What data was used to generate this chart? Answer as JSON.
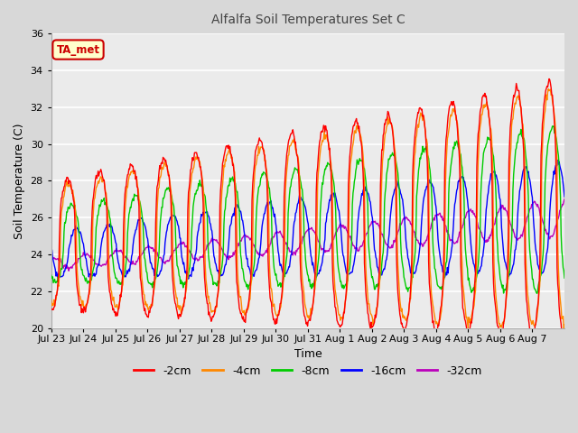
{
  "title": "Alfalfa Soil Temperatures Set C",
  "xlabel": "Time",
  "ylabel": "Soil Temperature (C)",
  "ylim": [
    20,
    36
  ],
  "yticks": [
    20,
    22,
    24,
    26,
    28,
    30,
    32,
    34,
    36
  ],
  "bg_color": "#d8d8d8",
  "plot_bg_color": "#ebebeb",
  "grid_color": "#cccccc",
  "annotation_text": "TA_met",
  "annotation_bg": "#ffffcc",
  "annotation_border": "#cc0000",
  "legend": [
    "-2cm",
    "-4cm",
    "-8cm",
    "-16cm",
    "-32cm"
  ],
  "colors": [
    "#ff0000",
    "#ff8800",
    "#00cc00",
    "#0000ff",
    "#bb00bb"
  ],
  "days": [
    "Jul 23",
    "Jul 24",
    "Jul 25",
    "Jul 26",
    "Jul 27",
    "Jul 28",
    "Jul 29",
    "Jul 30",
    "Jul 31",
    "Aug 1",
    "Aug 2",
    "Aug 3",
    "Aug 4",
    "Aug 5",
    "Aug 6",
    "Aug 7"
  ]
}
